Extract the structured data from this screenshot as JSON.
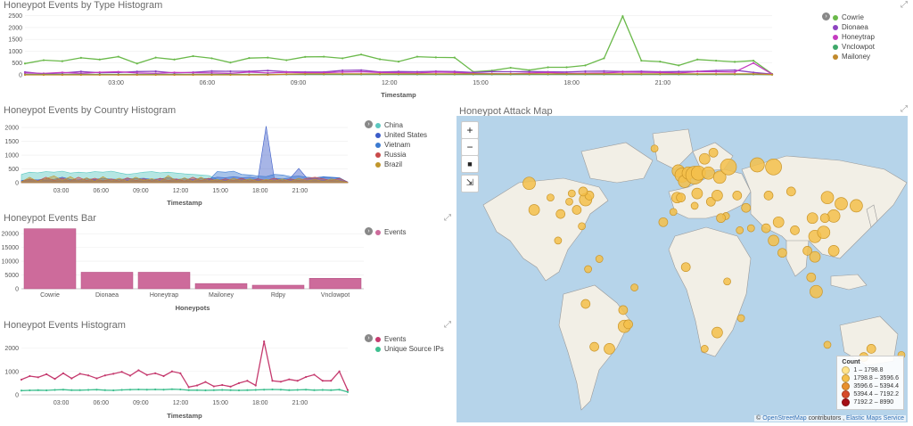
{
  "panels": {
    "type_hist": {
      "title": "Honeypot Events by Type Histogram",
      "xlabel": "Timestamp",
      "toggle": "›"
    },
    "country_hist": {
      "title": "Honeypot Events by Country Histogram",
      "xlabel": "Timestamp",
      "toggle": "›"
    },
    "bar": {
      "title": "Honeypot Events Bar",
      "xlabel": "Honeypots",
      "toggle": "›"
    },
    "events_hist": {
      "title": "Honeypot Events Histogram",
      "xlabel": "Timestamp",
      "toggle": "›"
    },
    "map": {
      "title": "Honeypot Attack Map"
    }
  },
  "expand_icon": "⤢",
  "map": {
    "controls": {
      "zoom_in": "+",
      "zoom_out": "−",
      "draw": "■",
      "fit": "⇲"
    },
    "legend_title": "Count",
    "legend": [
      {
        "label": "1 – 1798.8",
        "color": "#ffe38a"
      },
      {
        "label": "1798.8 – 3596.6",
        "color": "#f5c04a"
      },
      {
        "label": "3596.6 – 5394.4",
        "color": "#e8902d"
      },
      {
        "label": "5394.4 – 7192.2",
        "color": "#d64a2a"
      },
      {
        "label": "7192.2 – 8990",
        "color": "#a50f15"
      }
    ],
    "attribution_prefix": "© ",
    "attribution_osm": "OpenStreetMap",
    "attribution_mid": " contributors , ",
    "attribution_ems": "Elastic Maps Service",
    "bubbles": [
      {
        "lon": -122,
        "lat": 47,
        "r": 7
      },
      {
        "lon": -118,
        "lat": 34,
        "r": 6
      },
      {
        "lon": -105,
        "lat": 40,
        "r": 4
      },
      {
        "lon": -97,
        "lat": 32,
        "r": 5
      },
      {
        "lon": -90,
        "lat": 38,
        "r": 4
      },
      {
        "lon": -84,
        "lat": 34,
        "r": 5
      },
      {
        "lon": -77,
        "lat": 39,
        "r": 7
      },
      {
        "lon": -74,
        "lat": 41,
        "r": 5
      },
      {
        "lon": -79,
        "lat": 43,
        "r": 5
      },
      {
        "lon": -88,
        "lat": 42,
        "r": 4
      },
      {
        "lon": -80,
        "lat": 26,
        "r": 4
      },
      {
        "lon": -99,
        "lat": 19,
        "r": 4
      },
      {
        "lon": -75,
        "lat": 5,
        "r": 4
      },
      {
        "lon": -66,
        "lat": 10,
        "r": 4
      },
      {
        "lon": -77,
        "lat": -12,
        "r": 5
      },
      {
        "lon": -47,
        "lat": -15,
        "r": 5
      },
      {
        "lon": -46,
        "lat": -23,
        "r": 7
      },
      {
        "lon": -43,
        "lat": -22,
        "r": 5
      },
      {
        "lon": -58,
        "lat": -34,
        "r": 6
      },
      {
        "lon": -70,
        "lat": -33,
        "r": 5
      },
      {
        "lon": -38,
        "lat": -4,
        "r": 4
      },
      {
        "lon": -3,
        "lat": 53,
        "r": 7
      },
      {
        "lon": 0,
        "lat": 51,
        "r": 8
      },
      {
        "lon": 2,
        "lat": 48,
        "r": 7
      },
      {
        "lon": 5,
        "lat": 52,
        "r": 7
      },
      {
        "lon": 10,
        "lat": 51,
        "r": 10
      },
      {
        "lon": 13,
        "lat": 52,
        "r": 8
      },
      {
        "lon": 18,
        "lat": 59,
        "r": 6
      },
      {
        "lon": 21,
        "lat": 52,
        "r": 7
      },
      {
        "lon": 30,
        "lat": 50,
        "r": 7
      },
      {
        "lon": 37,
        "lat": 55,
        "r": 9
      },
      {
        "lon": 60,
        "lat": 56,
        "r": 8
      },
      {
        "lon": 73,
        "lat": 55,
        "r": 9
      },
      {
        "lon": 25,
        "lat": 62,
        "r": 5
      },
      {
        "lon": 12,
        "lat": 42,
        "r": 6
      },
      {
        "lon": -4,
        "lat": 40,
        "r": 6
      },
      {
        "lon": 23,
        "lat": 38,
        "r": 5
      },
      {
        "lon": 28,
        "lat": 41,
        "r": 6
      },
      {
        "lon": 44,
        "lat": 41,
        "r": 5
      },
      {
        "lon": 51,
        "lat": 35,
        "r": 5
      },
      {
        "lon": 35,
        "lat": 31,
        "r": 4
      },
      {
        "lon": 31,
        "lat": 30,
        "r": 5
      },
      {
        "lon": 46,
        "lat": 24,
        "r": 4
      },
      {
        "lon": 55,
        "lat": 25,
        "r": 4
      },
      {
        "lon": 67,
        "lat": 25,
        "r": 5
      },
      {
        "lon": 77,
        "lat": 28,
        "r": 6
      },
      {
        "lon": 73,
        "lat": 19,
        "r": 6
      },
      {
        "lon": 80,
        "lat": 13,
        "r": 5
      },
      {
        "lon": 90,
        "lat": 24,
        "r": 5
      },
      {
        "lon": 100,
        "lat": 14,
        "r": 5
      },
      {
        "lon": 106,
        "lat": 21,
        "r": 7
      },
      {
        "lon": 106,
        "lat": 11,
        "r": 6
      },
      {
        "lon": 103,
        "lat": 1,
        "r": 5
      },
      {
        "lon": 107,
        "lat": -6,
        "r": 7
      },
      {
        "lon": 121,
        "lat": 14,
        "r": 6
      },
      {
        "lon": 113,
        "lat": 23,
        "r": 7
      },
      {
        "lon": 121,
        "lat": 31,
        "r": 7
      },
      {
        "lon": 116,
        "lat": 40,
        "r": 7
      },
      {
        "lon": 127,
        "lat": 37,
        "r": 7
      },
      {
        "lon": 139,
        "lat": 36,
        "r": 7
      },
      {
        "lon": 104,
        "lat": 30,
        "r": 6
      },
      {
        "lon": 87,
        "lat": 43,
        "r": 5
      },
      {
        "lon": 69,
        "lat": 41,
        "r": 5
      },
      {
        "lon": 114,
        "lat": 30,
        "r": 5
      },
      {
        "lon": 151,
        "lat": -34,
        "r": 5
      },
      {
        "lon": 145,
        "lat": -38,
        "r": 5
      },
      {
        "lon": 116,
        "lat": -32,
        "r": 4
      },
      {
        "lon": 175,
        "lat": -37,
        "r": 4
      },
      {
        "lon": 3,
        "lat": 6,
        "r": 5
      },
      {
        "lon": 36,
        "lat": -1,
        "r": 4
      },
      {
        "lon": 28,
        "lat": -26,
        "r": 6
      },
      {
        "lon": 18,
        "lat": -34,
        "r": 4
      },
      {
        "lon": -7,
        "lat": 33,
        "r": 4
      },
      {
        "lon": 10,
        "lat": 36,
        "r": 4
      },
      {
        "lon": 47,
        "lat": -19,
        "r": 4
      },
      {
        "lon": -15,
        "lat": 28,
        "r": 5
      },
      {
        "lon": -22,
        "lat": 64,
        "r": 4
      },
      {
        "lon": -1,
        "lat": 40,
        "r": 5
      }
    ]
  },
  "chart_data": [
    {
      "type": "line",
      "title": "Honeypot Events by Type Histogram",
      "xlabel": "Timestamp",
      "x_ticks": [
        "03:00",
        "06:00",
        "09:00",
        "12:00",
        "15:00",
        "18:00",
        "21:00"
      ],
      "y_ticks": [
        "2500",
        "2000",
        "1500",
        "1000",
        "500",
        "0"
      ],
      "ylim": [
        0,
        2600
      ],
      "series": [
        {
          "name": "Cowrie",
          "color": "#6ab94a",
          "values": [
            480,
            620,
            580,
            720,
            650,
            770,
            480,
            730,
            650,
            790,
            700,
            520,
            710,
            730,
            620,
            760,
            770,
            700,
            860,
            660,
            560,
            770,
            740,
            730,
            130,
            180,
            300,
            200,
            320,
            320,
            400,
            700,
            2480,
            600,
            560,
            400,
            650,
            600,
            550,
            600,
            40
          ]
        },
        {
          "name": "Dionaea",
          "color": "#8e44c0",
          "values": [
            120,
            40,
            80,
            140,
            90,
            100,
            140,
            150,
            80,
            110,
            160,
            150,
            150,
            180,
            130,
            120,
            120,
            190,
            200,
            120,
            140,
            130,
            150,
            140,
            100,
            140,
            130,
            140,
            130,
            120,
            150,
            160,
            140,
            150,
            130,
            140,
            150,
            180,
            200,
            100,
            30
          ]
        },
        {
          "name": "Honeytrap",
          "color": "#c43cc0",
          "values": [
            80,
            60,
            100,
            60,
            110,
            130,
            80,
            60,
            100,
            90,
            80,
            60,
            120,
            80,
            110,
            90,
            90,
            120,
            130,
            100,
            90,
            80,
            120,
            100,
            60,
            50,
            40,
            80,
            100,
            60,
            70,
            80,
            120,
            110,
            100,
            80,
            140,
            130,
            120,
            500,
            30
          ]
        },
        {
          "name": "Vnclowpot",
          "color": "#3fa86a",
          "values": [
            20,
            20,
            20,
            20,
            20,
            20,
            20,
            20,
            20,
            20,
            20,
            20,
            20,
            20,
            20,
            20,
            20,
            20,
            20,
            20,
            20,
            20,
            20,
            20,
            20,
            20,
            20,
            20,
            20,
            20,
            20,
            20,
            20,
            20,
            20,
            20,
            20,
            20,
            20,
            20,
            10
          ]
        },
        {
          "name": "Mailoney",
          "color": "#c18a2c",
          "values": [
            0,
            0,
            0,
            0,
            0,
            0,
            0,
            0,
            0,
            0,
            0,
            0,
            0,
            0,
            30,
            40,
            40,
            40,
            40,
            40,
            40,
            40,
            40,
            40,
            40,
            40,
            40,
            40,
            40,
            40,
            40,
            40,
            40,
            40,
            40,
            40,
            40,
            40,
            40,
            40,
            10
          ]
        }
      ]
    },
    {
      "type": "area",
      "title": "Honeypot Events by Country Histogram",
      "xlabel": "Timestamp",
      "x_ticks": [
        "03:00",
        "06:00",
        "09:00",
        "12:00",
        "15:00",
        "18:00",
        "21:00"
      ],
      "y_ticks": [
        "2000",
        "1500",
        "1000",
        "500",
        "0"
      ],
      "ylim": [
        0,
        2100
      ],
      "series": [
        {
          "name": "China",
          "color": "#5cc8c0",
          "values": [
            300,
            380,
            360,
            400,
            380,
            420,
            350,
            380,
            360,
            400,
            380,
            420,
            360,
            300,
            340,
            380,
            400,
            360,
            380,
            350,
            320,
            300,
            280,
            260,
            120,
            100,
            80,
            100,
            120,
            100,
            90,
            80,
            100,
            120,
            100,
            80,
            90,
            80,
            100,
            80,
            20
          ]
        },
        {
          "name": "United States",
          "color": "#3b5cc8",
          "values": [
            80,
            120,
            100,
            140,
            120,
            200,
            120,
            100,
            140,
            120,
            160,
            130,
            120,
            140,
            150,
            160,
            120,
            140,
            180,
            120,
            140,
            120,
            160,
            140,
            200,
            180,
            220,
            180,
            200,
            160,
            2050,
            160,
            140,
            180,
            520,
            160,
            140,
            200,
            180,
            160,
            30
          ]
        },
        {
          "name": "Vietnam",
          "color": "#3b7ad0",
          "values": [
            60,
            80,
            70,
            90,
            60,
            80,
            100,
            70,
            60,
            80,
            90,
            70,
            60,
            80,
            70,
            60,
            80,
            70,
            60,
            80,
            70,
            60,
            80,
            100,
            400,
            380,
            420,
            300,
            280,
            240,
            220,
            300,
            280,
            220,
            240,
            200,
            180,
            220,
            200,
            180,
            20
          ]
        },
        {
          "name": "Russia",
          "color": "#c84a4a",
          "values": [
            40,
            140,
            60,
            200,
            80,
            160,
            60,
            200,
            80,
            160,
            60,
            140,
            60,
            180,
            80,
            140,
            60,
            160,
            80,
            140,
            60,
            200,
            80,
            160,
            60,
            140,
            80,
            160,
            60,
            140,
            80,
            160,
            60,
            140,
            80,
            160,
            200,
            140,
            80,
            160,
            20
          ]
        },
        {
          "name": "Brazil",
          "color": "#c1962c",
          "values": [
            30,
            200,
            40,
            150,
            250,
            80,
            220,
            60,
            180,
            40,
            220,
            60,
            160,
            40,
            200,
            80,
            150,
            40,
            260,
            60,
            180,
            40,
            200,
            60,
            120,
            40,
            160,
            60,
            140,
            40,
            120,
            60,
            140,
            40,
            160,
            60,
            120,
            40,
            140,
            60,
            10
          ]
        }
      ]
    },
    {
      "type": "bar",
      "title": "Honeypot Events Bar",
      "xlabel": "Honeypots",
      "categories": [
        "Cowrie",
        "Dionaea",
        "Honeytrap",
        "Mailoney",
        "Rdpy",
        "Vnclowpot"
      ],
      "y_ticks": [
        "20000",
        "15000",
        "10000",
        "5000",
        "0"
      ],
      "ylim": [
        0,
        22000
      ],
      "series": [
        {
          "name": "Events",
          "color": "#cd6b9b",
          "values": [
            21800,
            6000,
            6000,
            1900,
            1300,
            3800
          ]
        }
      ]
    },
    {
      "type": "line",
      "title": "Honeypot Events Histogram",
      "xlabel": "Timestamp",
      "x_ticks": [
        "03:00",
        "06:00",
        "09:00",
        "12:00",
        "15:00",
        "18:00",
        "21:00"
      ],
      "y_ticks": [
        "2000",
        "1000",
        "0"
      ],
      "ylim": [
        0,
        2400
      ],
      "series": [
        {
          "name": "Events",
          "color": "#c53a6e",
          "values": [
            650,
            800,
            750,
            880,
            680,
            920,
            700,
            900,
            830,
            700,
            830,
            900,
            980,
            820,
            1050,
            850,
            920,
            800,
            1000,
            920,
            330,
            400,
            550,
            360,
            420,
            350,
            500,
            600,
            400,
            2280,
            600,
            560,
            660,
            600,
            760,
            860,
            600,
            600,
            1000,
            200
          ]
        },
        {
          "name": "Unique Source IPs",
          "color": "#3fbf8f",
          "values": [
            180,
            190,
            200,
            190,
            210,
            220,
            200,
            200,
            210,
            220,
            200,
            190,
            210,
            220,
            230,
            220,
            230,
            220,
            240,
            230,
            200,
            200,
            190,
            200,
            210,
            200,
            190,
            200,
            210,
            220,
            230,
            220,
            200,
            210,
            220,
            200,
            210,
            200,
            220,
            120
          ]
        }
      ]
    }
  ]
}
